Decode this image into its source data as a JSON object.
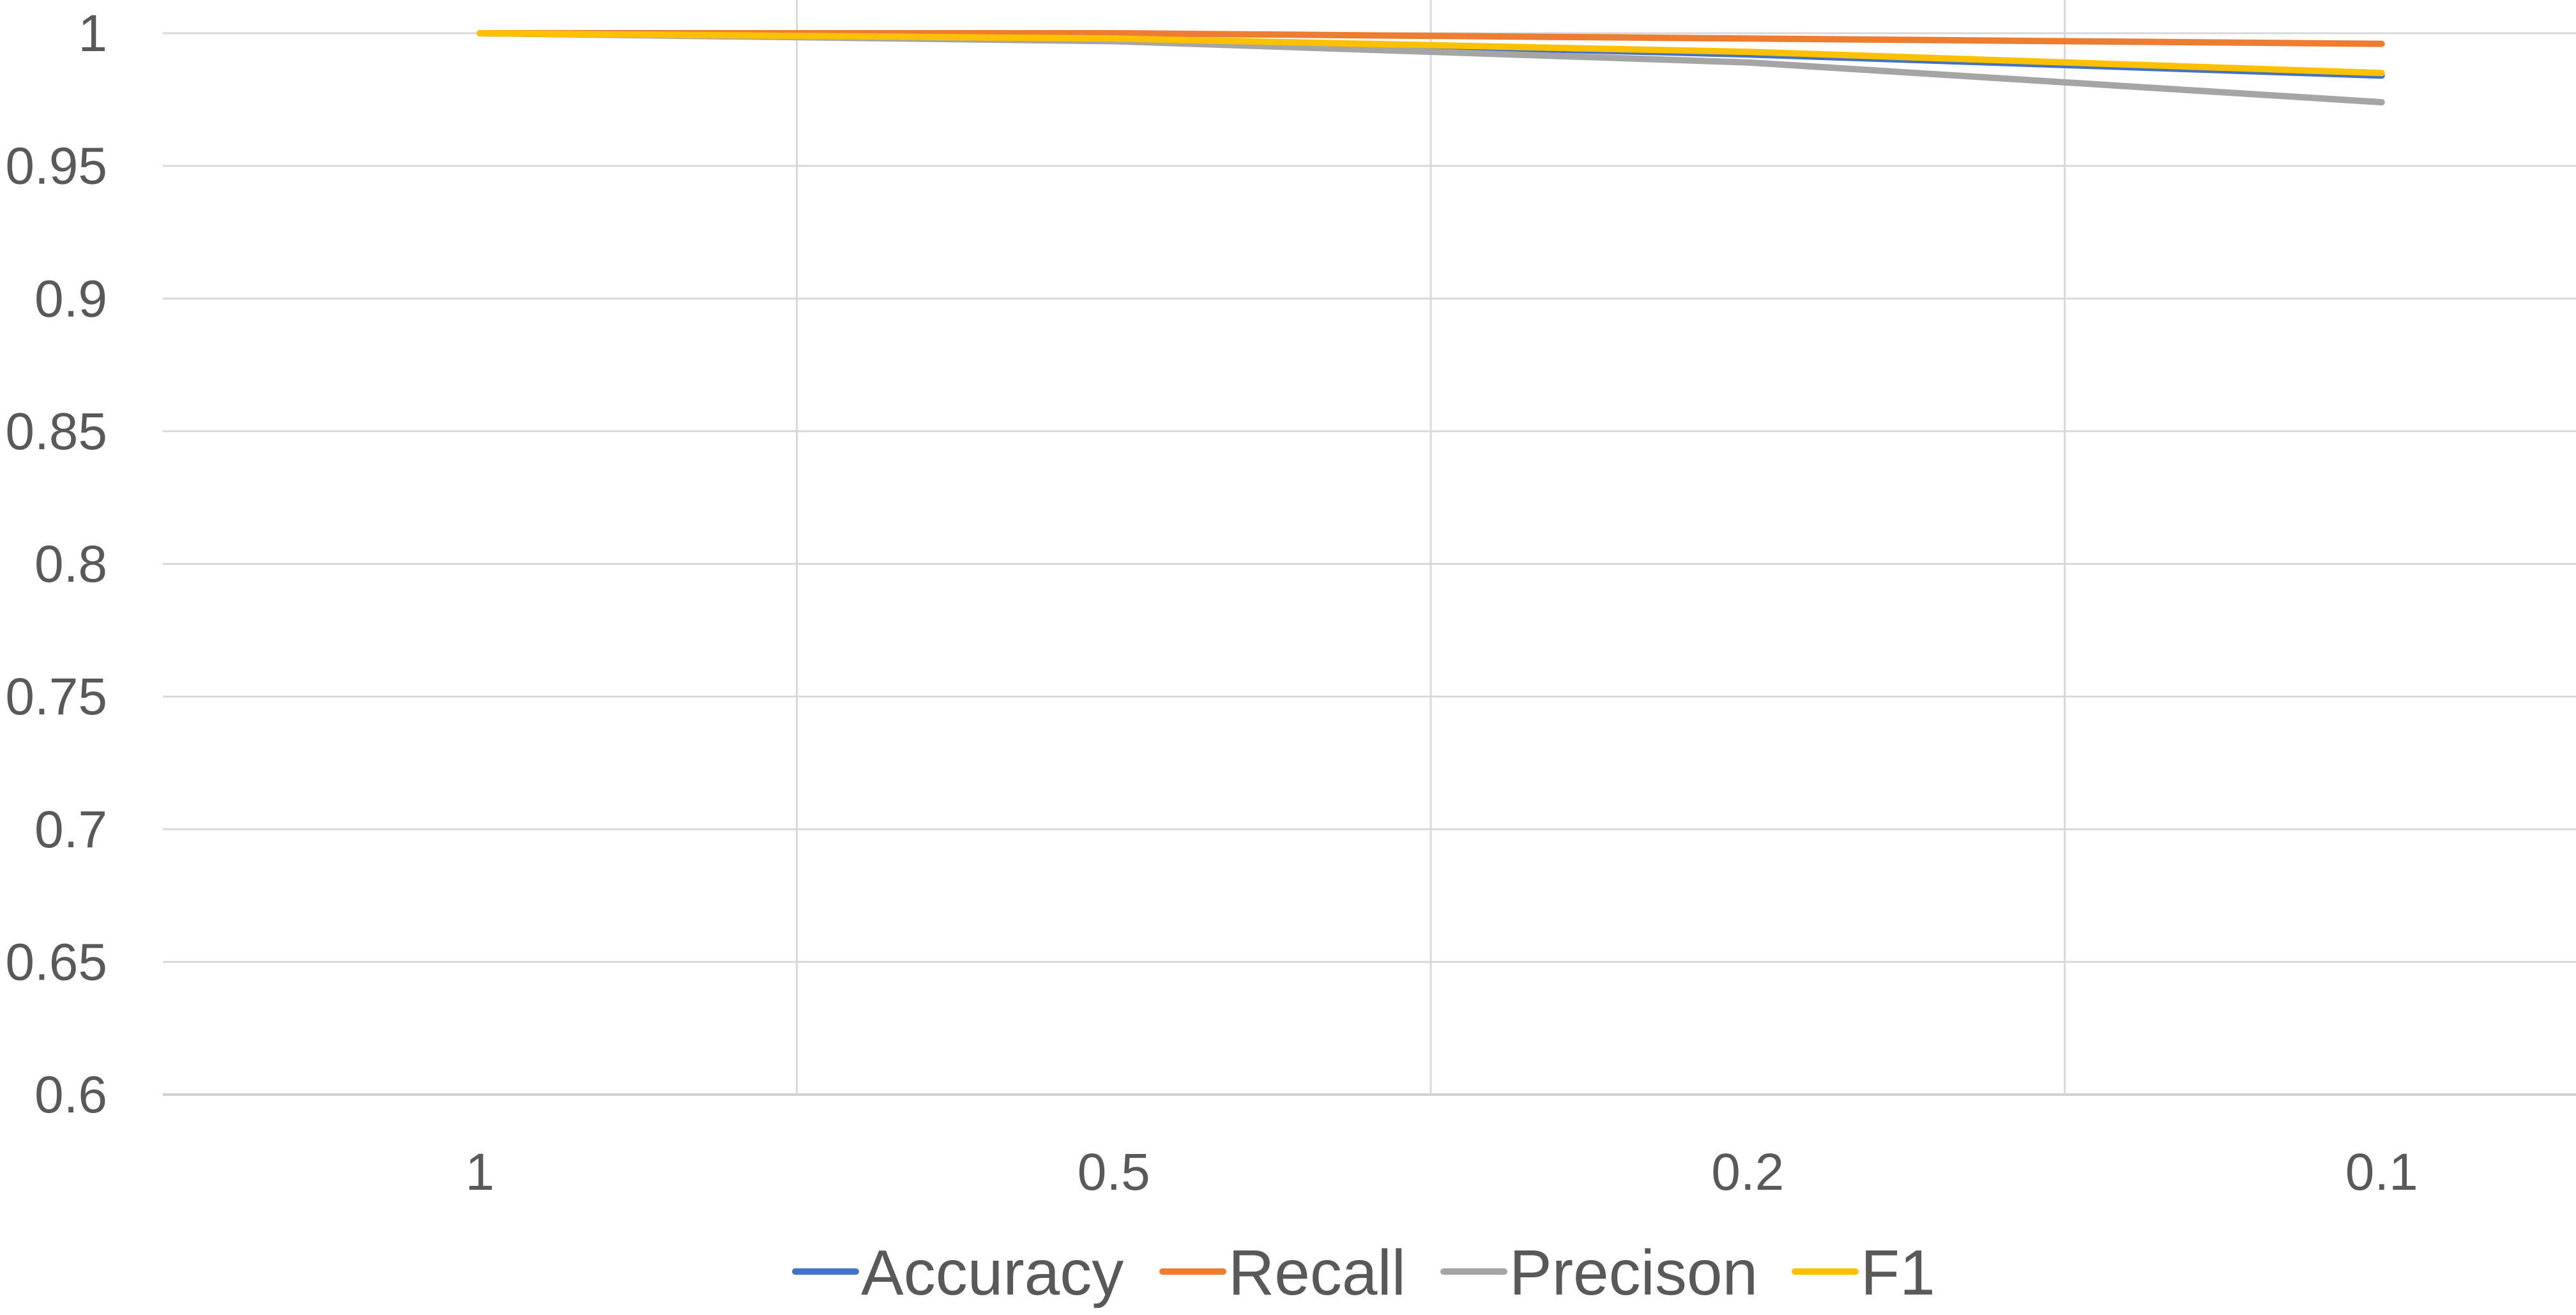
{
  "chart_data": {
    "type": "line",
    "categories": [
      "1",
      "0.5",
      "0.2",
      "0.1"
    ],
    "ylim": [
      0.6,
      1.0
    ],
    "yticks": [
      0.6,
      0.65,
      0.7,
      0.75,
      0.8,
      0.85,
      0.9,
      0.95,
      1
    ],
    "ytick_labels": [
      "0.6",
      "0.65",
      "0.7",
      "0.75",
      "0.8",
      "0.85",
      "0.9",
      "0.95",
      "1"
    ],
    "grid": true,
    "legend_position": "bottom",
    "series": [
      {
        "name": "Accuracy",
        "color": "#4472C4",
        "values": [
          1.0,
          0.998,
          0.992,
          0.984
        ]
      },
      {
        "name": "Recall",
        "color": "#ED7D31",
        "values": [
          1.0,
          1.0,
          0.998,
          0.996
        ]
      },
      {
        "name": "Precison",
        "color": "#A5A5A5",
        "values": [
          1.0,
          0.997,
          0.989,
          0.974
        ]
      },
      {
        "name": "F1",
        "color": "#FFC000",
        "values": [
          1.0,
          0.998,
          0.993,
          0.985
        ]
      }
    ]
  }
}
